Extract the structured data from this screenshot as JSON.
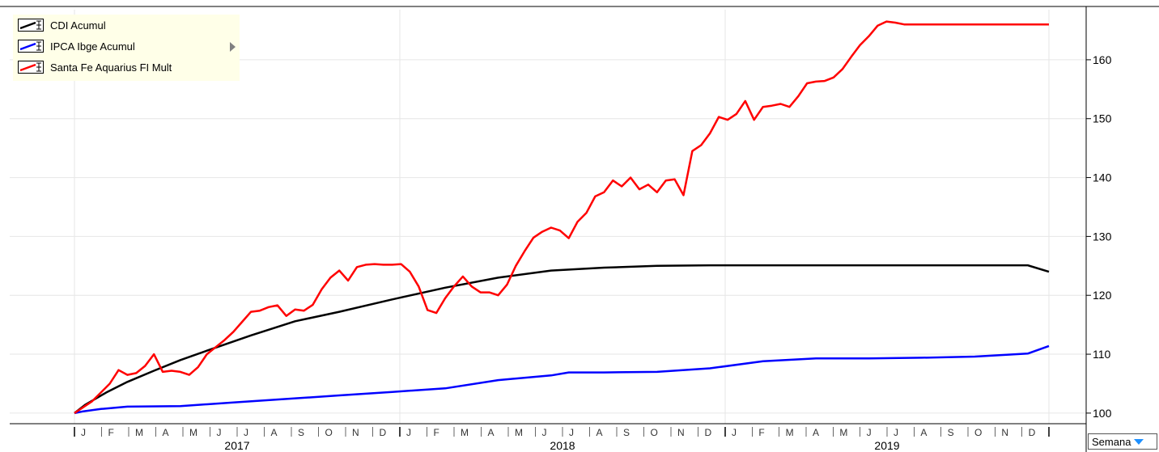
{
  "chart_data": {
    "type": "line",
    "y_ticks": [
      100,
      110,
      120,
      130,
      140,
      150,
      160
    ],
    "ylim": [
      98.2,
      168.5
    ],
    "years": [
      "2017",
      "2018",
      "2019"
    ],
    "month_ticks": [
      "J",
      "F",
      "M",
      "A",
      "M",
      "J",
      "J",
      "A",
      "S",
      "O",
      "N",
      "D"
    ],
    "legend_position": "top-left",
    "grid": true,
    "series": [
      {
        "name": "CDI Acumul",
        "color": "#000000",
        "x": [
          0,
          12,
          36,
          60,
          90,
          120,
          150,
          200,
          250,
          300,
          360,
          420,
          480,
          540,
          600,
          660,
          720,
          780,
          840,
          900,
          960,
          1020,
          1080,
          1104
        ],
        "y": [
          100,
          101.4,
          103.5,
          105.3,
          107.2,
          109.0,
          110.6,
          113.2,
          115.6,
          117.2,
          119.3,
          121.3,
          123.0,
          124.2,
          124.7,
          125.0,
          125.1,
          125.1,
          125.1,
          125.1,
          125.1,
          125.1,
          125.1,
          124.0
        ]
      },
      {
        "name": "IPCA Ibge Acumul",
        "color": "#0000ff",
        "x": [
          0,
          10,
          30,
          60,
          120,
          180,
          240,
          300,
          360,
          420,
          480,
          540,
          560,
          600,
          660,
          720,
          780,
          840,
          900,
          960,
          1020,
          1080,
          1104
        ],
        "y": [
          100,
          100.3,
          100.7,
          101.1,
          101.2,
          101.8,
          102.4,
          103.0,
          103.6,
          104.2,
          105.6,
          106.4,
          106.9,
          106.9,
          107.0,
          107.6,
          108.8,
          109.3,
          109.3,
          109.4,
          109.6,
          110.1,
          111.4
        ]
      },
      {
        "name": "Santa Fe Aquarius FI Mult",
        "color": "#ff0000",
        "x": [
          0,
          20,
          40,
          50,
          60,
          70,
          80,
          90,
          100,
          110,
          120,
          130,
          140,
          150,
          160,
          170,
          180,
          190,
          200,
          210,
          220,
          230,
          240,
          250,
          260,
          270,
          280,
          290,
          300,
          310,
          320,
          330,
          340,
          350,
          360,
          370,
          380,
          390,
          400,
          410,
          420,
          430,
          440,
          450,
          460,
          470,
          480,
          490,
          500,
          510,
          520,
          530,
          540,
          550,
          560,
          570,
          580,
          590,
          600,
          610,
          620,
          630,
          640,
          650,
          660,
          670,
          680,
          690,
          700,
          710,
          720,
          730,
          740,
          750,
          760,
          770,
          780,
          790,
          800,
          810,
          820,
          830,
          840,
          850,
          860,
          870,
          880,
          890,
          900,
          910,
          920,
          930,
          940,
          950,
          960,
          970,
          980,
          990,
          1000,
          1010,
          1020,
          1030,
          1040,
          1050,
          1060,
          1070,
          1080,
          1090,
          1104
        ],
        "y": [
          100,
          102,
          105,
          107.3,
          106.5,
          106.8,
          108,
          110,
          107,
          107.2,
          107,
          106.5,
          107.8,
          110,
          111.2,
          112.4,
          113.8,
          115.5,
          117.2,
          117.4,
          118,
          118.3,
          116.5,
          117.6,
          117.4,
          118.4,
          121,
          123,
          124.2,
          122.5,
          124.8,
          125.2,
          125.3,
          125.2,
          125.2,
          125.3,
          124,
          121.5,
          117.5,
          117,
          119.5,
          121.5,
          123.2,
          121.5,
          120.5,
          120.5,
          120,
          121.8,
          125,
          127.5,
          129.8,
          130.8,
          131.5,
          131,
          129.7,
          132.5,
          134,
          136.8,
          137.5,
          139.5,
          138.5,
          140,
          138,
          138.8,
          137.5,
          139.5,
          139.7,
          137,
          144.5,
          145.5,
          147.5,
          150.3,
          149.8,
          150.8,
          153,
          149.8,
          152,
          152.2,
          152.5,
          152,
          153.8,
          156,
          156.3,
          156.4,
          157,
          158.4,
          160.5,
          162.5,
          164,
          165.8,
          166.5,
          166.3,
          166,
          166,
          166,
          166,
          166,
          166,
          166,
          166,
          166,
          166,
          166,
          166,
          166,
          166,
          166,
          166,
          166
        ]
      }
    ]
  },
  "legend": {
    "items": [
      {
        "label": "CDI Acumul",
        "color": "#000000"
      },
      {
        "label": "IPCA Ibge Acumul",
        "color": "#0000ff"
      },
      {
        "label": "Santa Fe Aquarius FI Mult",
        "color": "#ff0000"
      }
    ]
  },
  "period_selector": {
    "label": "Semana"
  }
}
